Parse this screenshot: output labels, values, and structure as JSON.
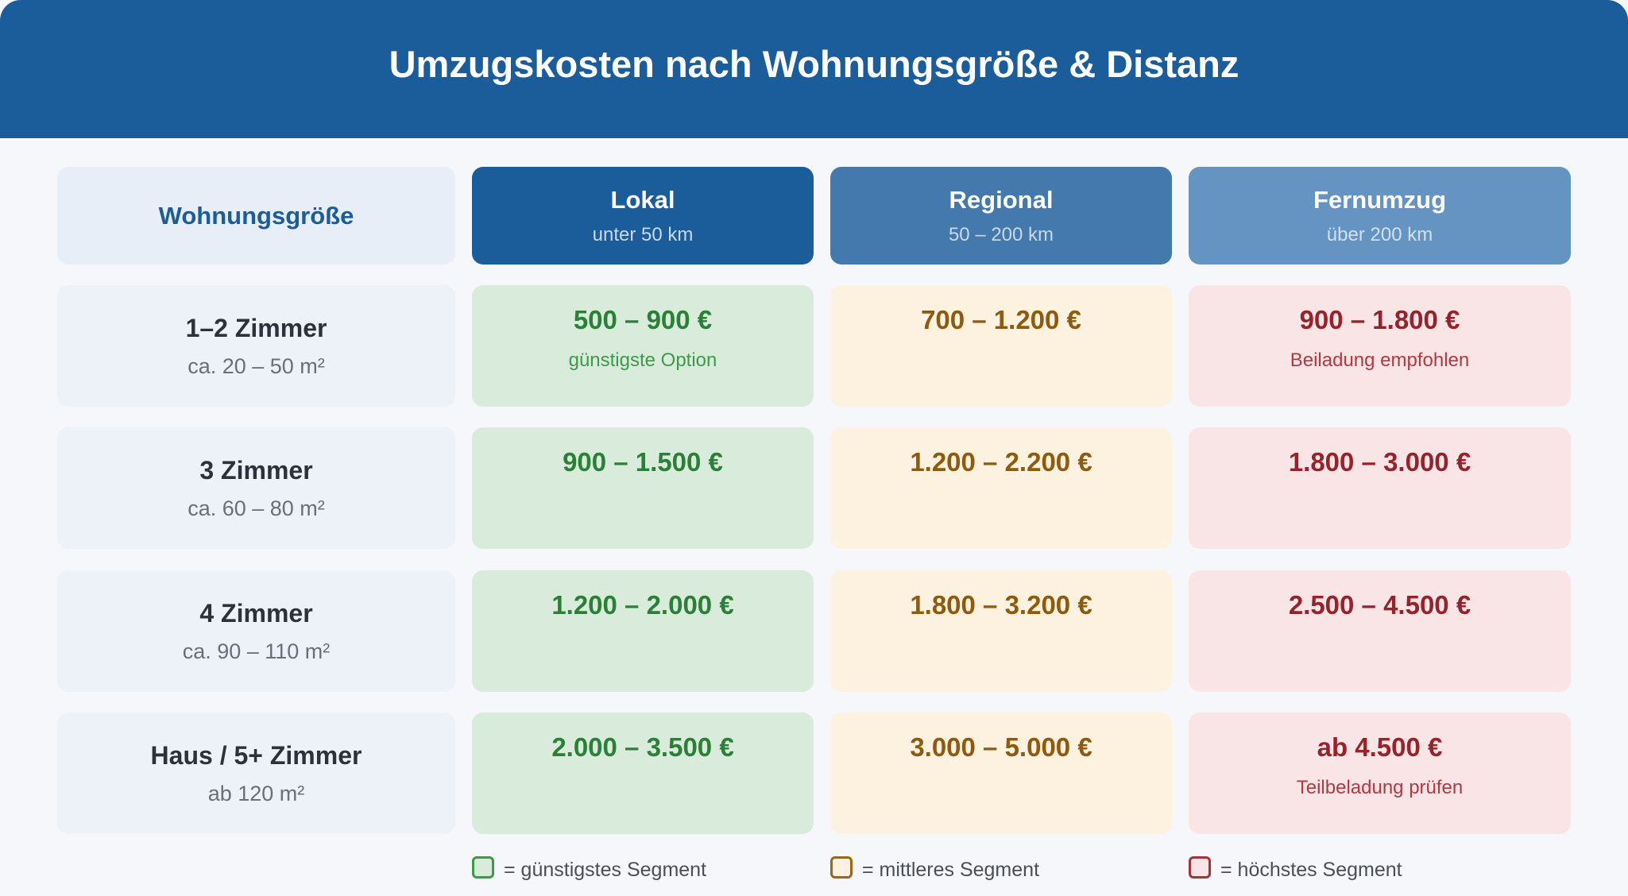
{
  "title": "Umzugskosten nach Wohnungsgröße & Distanz",
  "corner_label": "Wohnungsgröße",
  "columns": [
    {
      "label": "Lokal",
      "sub": "unter 50 km"
    },
    {
      "label": "Regional",
      "sub": "50 – 200 km"
    },
    {
      "label": "Fernumzug",
      "sub": "über 200 km"
    }
  ],
  "rows": [
    {
      "label": "1–2 Zimmer",
      "sub": "ca. 20 – 50 m²",
      "cells": [
        {
          "value": "500 – 900 €",
          "note": "günstigste Option"
        },
        {
          "value": "700 – 1.200 €",
          "note": ""
        },
        {
          "value": "900 – 1.800 €",
          "note": "Beiladung empfohlen"
        }
      ]
    },
    {
      "label": "3 Zimmer",
      "sub": "ca. 60 – 80 m²",
      "cells": [
        {
          "value": "900 – 1.500 €",
          "note": ""
        },
        {
          "value": "1.200 – 2.200 €",
          "note": ""
        },
        {
          "value": "1.800 – 3.000 €",
          "note": ""
        }
      ]
    },
    {
      "label": "4 Zimmer",
      "sub": "ca. 90 – 110 m²",
      "cells": [
        {
          "value": "1.200 – 2.000 €",
          "note": ""
        },
        {
          "value": "1.800 – 3.200 €",
          "note": ""
        },
        {
          "value": "2.500 – 4.500 €",
          "note": ""
        }
      ]
    },
    {
      "label": "Haus / 5+ Zimmer",
      "sub": "ab 120 m²",
      "cells": [
        {
          "value": "2.000 – 3.500 €",
          "note": ""
        },
        {
          "value": "3.000 – 5.000 €",
          "note": ""
        },
        {
          "value": "ab 4.500 €",
          "note": "Teilbeladung prüfen"
        }
      ]
    }
  ],
  "legend": [
    {
      "label": "= günstigstes Segment",
      "color": "#3d9a4a"
    },
    {
      "label": "= mittleres Segment",
      "color": "#a0651a"
    },
    {
      "label": "= höchstes Segment",
      "color": "#a8323b"
    }
  ],
  "colors": {
    "header": "#1b5c9b",
    "col_lokal": "#1b5c9b",
    "col_regional": "#4479ae",
    "col_fernumzug": "#6593c2"
  }
}
